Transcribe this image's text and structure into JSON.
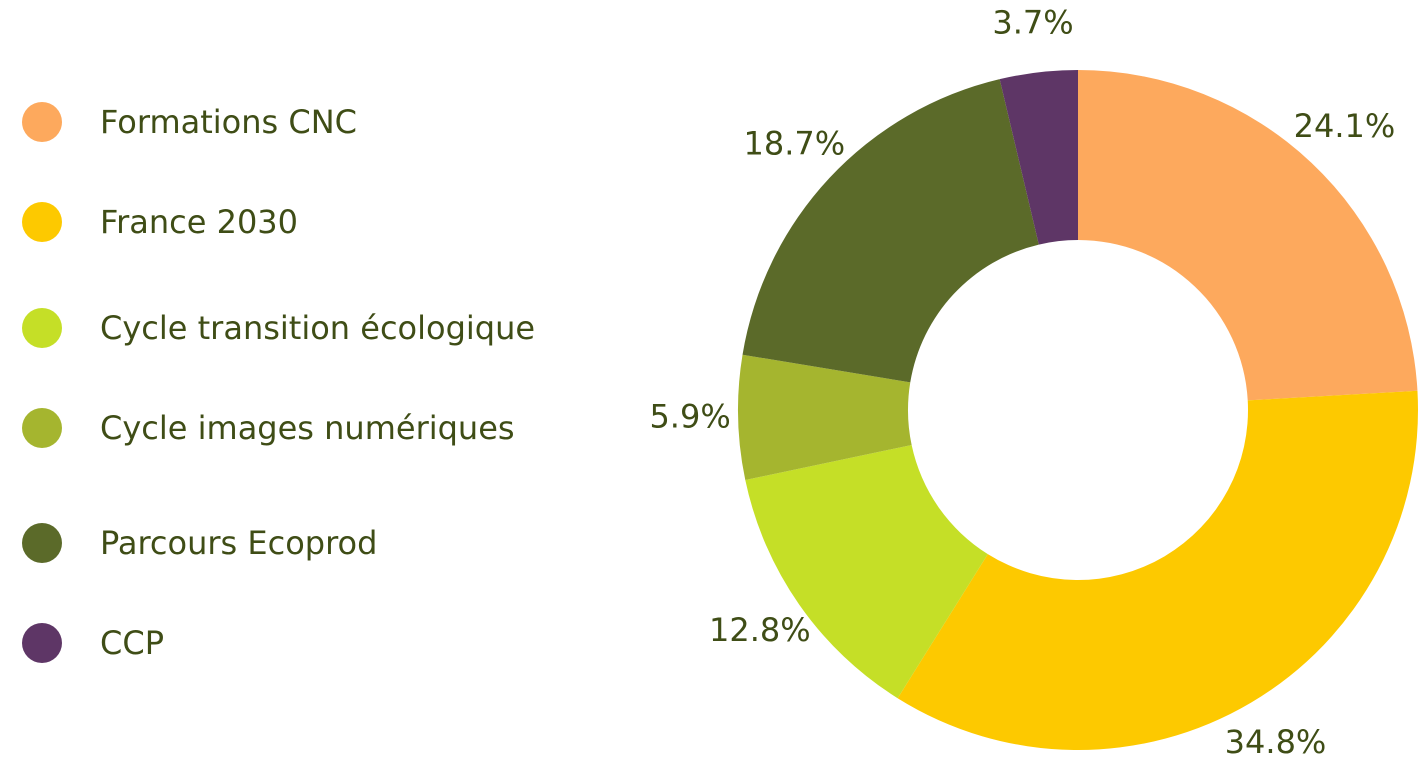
{
  "chart_data": {
    "type": "donut",
    "categories": [
      "Formations CNC",
      "France 2030",
      "Cycle transition écologique",
      "Cycle images numériques",
      "Parcours Ecoprod",
      "CCP"
    ],
    "values": [
      24.1,
      34.8,
      12.8,
      5.9,
      18.7,
      3.7
    ],
    "value_labels": [
      "24.1%",
      "34.8%",
      "12.8%",
      "5.9%",
      "18.7%",
      "3.7%"
    ],
    "colors": [
      "#fda95d",
      "#fdc900",
      "#c5df27",
      "#a5b52f",
      "#5b6a29",
      "#5e3666"
    ],
    "legend": "left"
  }
}
